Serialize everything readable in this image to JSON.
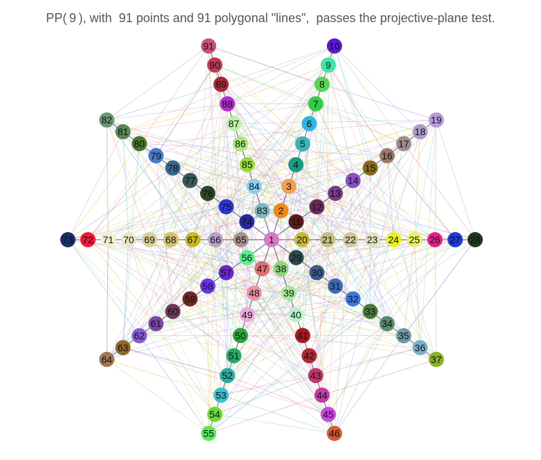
{
  "title": "PP( 9 ), with  91 points and 91 polygonal \"lines\",  passes the projective-plane test.",
  "diagram": {
    "points_count": 91,
    "center_point": "1",
    "arms": [
      {
        "direction": "east",
        "labels": [
          "20",
          "21",
          "22",
          "23",
          "24",
          "25",
          "26",
          "27",
          "28"
        ]
      },
      {
        "direction": "north-east",
        "labels": [
          "11",
          "12",
          "13",
          "14",
          "15",
          "16",
          "17",
          "18",
          "19"
        ]
      },
      {
        "direction": "north-east-steep",
        "labels": [
          "2",
          "3",
          "4",
          "5",
          "6",
          "7",
          "8",
          "9",
          "10"
        ]
      },
      {
        "direction": "north-west-steep",
        "labels": [
          "83",
          "84",
          "85",
          "86",
          "87",
          "88",
          "89",
          "90",
          "91"
        ]
      },
      {
        "direction": "north-west",
        "labels": [
          "74",
          "75",
          "76",
          "77",
          "78",
          "79",
          "80",
          "81",
          "82"
        ]
      },
      {
        "direction": "west",
        "labels": [
          "65",
          "66",
          "67",
          "68",
          "69",
          "70",
          "71",
          "72",
          "73"
        ]
      },
      {
        "direction": "south-west",
        "labels": [
          "56",
          "57",
          "58",
          "59",
          "60",
          "61",
          "62",
          "63",
          "64"
        ]
      },
      {
        "direction": "south-west-steep",
        "labels": [
          "47",
          "48",
          "49",
          "50",
          "51",
          "52",
          "53",
          "54",
          "55"
        ]
      },
      {
        "direction": "south-east-steep",
        "labels": [
          "38",
          "39",
          "40",
          "41",
          "42",
          "43",
          "44",
          "45",
          "46"
        ]
      },
      {
        "direction": "south-east",
        "labels": [
          "29",
          "30",
          "31",
          "32",
          "33",
          "34",
          "35",
          "36",
          "37"
        ]
      }
    ],
    "node_colors": {
      "1": "#d977c9",
      "2": "#ea8a1c",
      "3": "#f0a050",
      "4": "#1a9a82",
      "5": "#38b6b6",
      "6": "#2fb6e0",
      "7": "#33cc44",
      "8": "#55d455",
      "9": "#3ee6a8",
      "10": "#5b16d8",
      "11": "#5a1a1a",
      "12": "#6a2a5a",
      "13": "#7a3a8a",
      "14": "#8a50c8",
      "15": "#8a6a1a",
      "16": "#9a7a6a",
      "17": "#a08a8a",
      "18": "#b09ad0",
      "19": "#b89ae0",
      "20": "#c8b838",
      "21": "#c0c080",
      "22": "#d0c89a",
      "23": "#e0e0c0",
      "24": "#e8f020",
      "25": "#e8f060",
      "26": "#e81c8c",
      "27": "#1c38d8",
      "28": "#1a3a1a",
      "29": "#2a4a4a",
      "30": "#3a5a8a",
      "31": "#3a6ab8",
      "32": "#3a7ae0",
      "33": "#4a7a3a",
      "34": "#5a8a6a",
      "35": "#6a9aaa",
      "36": "#7ab0d0",
      "37": "#8ab028",
      "38": "#88d878",
      "39": "#a8e898",
      "40": "#b8f0c8",
      "41": "#a81818",
      "42": "#b02838",
      "43": "#c03868",
      "44": "#c838a8",
      "45": "#c848e0",
      "46": "#d85830",
      "47": "#e07070",
      "48": "#f090a8",
      "49": "#f0a8e0",
      "50": "#28a838",
      "51": "#28a868",
      "52": "#28b0a0",
      "53": "#38c0d0",
      "54": "#68d838",
      "55": "#58e858",
      "56": "#58f088",
      "57": "#6828c8",
      "58": "#6838e8",
      "59": "#702828",
      "60": "#703858",
      "61": "#7848a8",
      "62": "#8858d8",
      "63": "#906828",
      "64": "#a07858",
      "65": "#a89090",
      "66": "#b8a0c8",
      "67": "#c8b818",
      "68": "#d0c068",
      "69": "#d8d098",
      "70": "#e8e8c8",
      "71": "#f0f0d0",
      "72": "#f01838",
      "73": "#183068",
      "74": "#282898",
      "75": "#2838d8",
      "76": "#284828",
      "77": "#385858",
      "78": "#386888",
      "79": "#4878c8",
      "80": "#487828",
      "81": "#588858",
      "82": "#689878",
      "83": "#78b8c0",
      "84": "#88d0f0",
      "85": "#98d838",
      "86": "#a8e878",
      "87": "#b8f0a8",
      "88": "#b828d8",
      "89": "#a82838",
      "90": "#c03858",
      "91": "#c85080"
    },
    "line_colors": [
      "#ff8c8c",
      "#8c8cff",
      "#8cd88c",
      "#ffb060",
      "#b070d0",
      "#60c8d0",
      "#e0d040",
      "#d080b0",
      "#80a0e0",
      "#a0d060"
    ]
  }
}
